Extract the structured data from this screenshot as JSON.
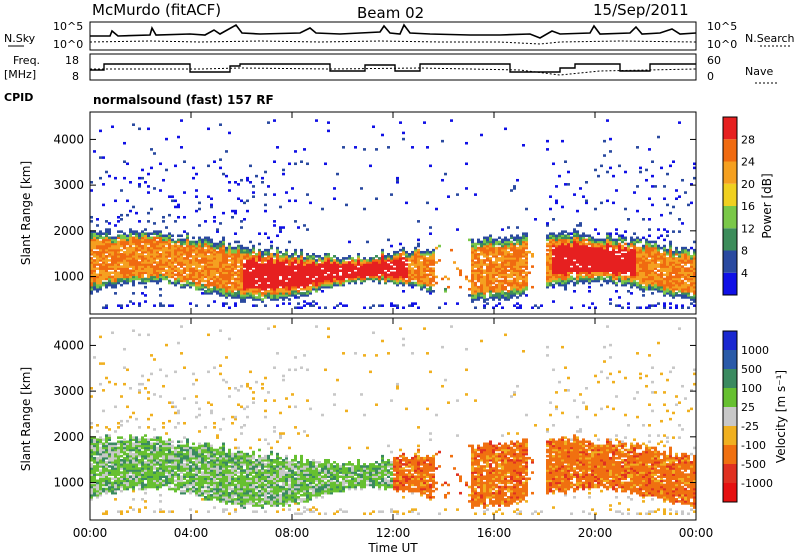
{
  "header": {
    "station": "McMurdo (fitACF)",
    "beam": "Beam 02",
    "date": "15/Sep/2011"
  },
  "aux_panel": {
    "left_label_top": "N.Sky",
    "right_label_top": "N.Search",
    "left_ticks_top": [
      "10^5",
      "10^0"
    ],
    "right_ticks_top": [
      "10^5",
      "10^0"
    ],
    "left_label_freq_1": "Freq.",
    "left_label_freq_2": "[MHz]",
    "freq_ticks": [
      "18",
      "8"
    ],
    "nave_ticks": [
      "60",
      "0"
    ],
    "right_label_nave": "Nave",
    "cpid_label": "CPID",
    "cpid_value": "normalsound (fast) 157 RF"
  },
  "chart_data": [
    {
      "type": "heatmap",
      "name": "power-panel",
      "ylabel": "Slant Range [km]",
      "y_ticks": [
        "1000",
        "2000",
        "3000",
        "4000"
      ],
      "ylim": [
        180,
        4600
      ],
      "colorbar_label": "Power [dB]",
      "colorbar_ticks": [
        "4",
        "8",
        "12",
        "16",
        "20",
        "24",
        "28"
      ],
      "colors": [
        "#1010e6",
        "#2a4aa0",
        "#3c8c5a",
        "#7ac848",
        "#f0d020",
        "#f5a020",
        "#f06a10",
        "#e62020"
      ]
    },
    {
      "type": "heatmap",
      "name": "velocity-panel",
      "ylabel": "Slant Range [km]",
      "y_ticks": [
        "1000",
        "2000",
        "3000",
        "4000"
      ],
      "ylim": [
        180,
        4600
      ],
      "colorbar_label": "Velocity [m s⁻¹]",
      "colorbar_ticks": [
        "1000",
        "500",
        "100",
        "25",
        "-25",
        "-100",
        "-500",
        "-1000"
      ],
      "colors": [
        "#1a28d0",
        "#2a5aa8",
        "#3a8a60",
        "#66c030",
        "#c8c8c8",
        "#f0b020",
        "#f07010",
        "#e03020",
        "#e61010"
      ]
    }
  ],
  "x_axis": {
    "ticks": [
      "00:00",
      "04:00",
      "08:00",
      "12:00",
      "16:00",
      "20:00",
      "00:00"
    ],
    "label": "Time UT"
  }
}
